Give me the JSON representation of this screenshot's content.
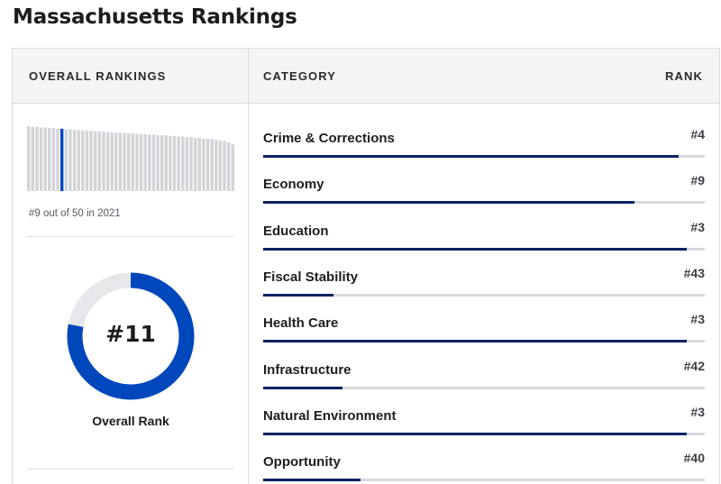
{
  "page": {
    "title": "Massachusetts Rankings"
  },
  "table": {
    "left_header": "OVERALL RANKINGS",
    "category_header": "CATEGORY",
    "rank_header": "RANK"
  },
  "overall": {
    "history_caption": "#9 out of 50 in 2021",
    "rank_label": "#11",
    "rank_caption": "Overall Rank",
    "rank_number": 11,
    "total_states": 50
  },
  "colors": {
    "accent": "#0047bb",
    "bar_fill": "#0b2262",
    "track": "#d6d8dc",
    "mini_bar": "#d2d4d8",
    "donut_track": "#e6e7ea"
  },
  "categories": [
    {
      "name": "Crime & Corrections",
      "rank": "#4",
      "fill_fraction": 0.94
    },
    {
      "name": "Economy",
      "rank": "#9",
      "fill_fraction": 0.84
    },
    {
      "name": "Education",
      "rank": "#3",
      "fill_fraction": 0.96
    },
    {
      "name": "Fiscal Stability",
      "rank": "#43",
      "fill_fraction": 0.16
    },
    {
      "name": "Health Care",
      "rank": "#3",
      "fill_fraction": 0.96
    },
    {
      "name": "Infrastructure",
      "rank": "#42",
      "fill_fraction": 0.18
    },
    {
      "name": "Natural Environment",
      "rank": "#3",
      "fill_fraction": 0.96
    },
    {
      "name": "Opportunity",
      "rank": "#40",
      "fill_fraction": 0.22
    }
  ],
  "chart_data": {
    "type": "bar",
    "highlight_rank": 9,
    "count": 50,
    "values": [
      1.0,
      0.99,
      0.99,
      0.98,
      0.98,
      0.97,
      0.97,
      0.96,
      0.96,
      0.95,
      0.95,
      0.94,
      0.94,
      0.94,
      0.93,
      0.93,
      0.92,
      0.92,
      0.92,
      0.91,
      0.91,
      0.9,
      0.9,
      0.9,
      0.89,
      0.89,
      0.88,
      0.88,
      0.88,
      0.87,
      0.87,
      0.86,
      0.86,
      0.86,
      0.85,
      0.85,
      0.84,
      0.84,
      0.83,
      0.83,
      0.82,
      0.82,
      0.81,
      0.81,
      0.8,
      0.79,
      0.78,
      0.77,
      0.75,
      0.72
    ]
  }
}
